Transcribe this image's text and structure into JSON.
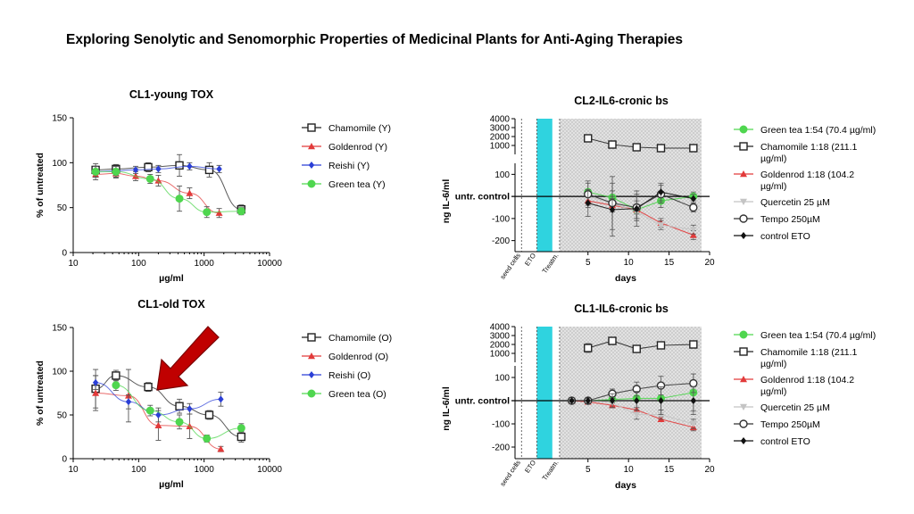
{
  "slide_title": "Exploring Senolytic and Senomorphic Properties of Medicinal Plants for Anti-Aging Therapies",
  "colors": {
    "chamomile": "#222222",
    "goldenrod": "#e23a3a",
    "reishi": "#2b3fd6",
    "green_tea": "#4fd64f",
    "quercetin": "#c4c4c4",
    "tempo": "#333333",
    "control": "#111111",
    "eto_band": "#2fd3df",
    "shade": "#d6d6d6"
  },
  "chart_data": [
    {
      "type": "line",
      "title": "CL1-young TOX",
      "xlabel": "µg/ml",
      "ylabel": "% of untreated",
      "xscale": "log",
      "xlim": [
        10,
        10000
      ],
      "ylim": [
        0,
        150
      ],
      "xticks": [
        "10",
        "100",
        "1000",
        "10000"
      ],
      "yticks": [
        "0",
        "50",
        "100",
        "150"
      ],
      "series": [
        {
          "name": "Chamomile (Y)",
          "key": "chamomile",
          "marker": "square-open",
          "x": [
            22,
            45,
            140,
            420,
            1200,
            3700
          ],
          "y": [
            92,
            93,
            95,
            97,
            92,
            48
          ],
          "err": [
            7,
            5,
            5,
            12,
            8,
            5
          ]
        },
        {
          "name": "Goldenrod (Y)",
          "key": "goldenrod",
          "marker": "triangle",
          "x": [
            22,
            45,
            90,
            200,
            600,
            1700
          ],
          "y": [
            87,
            88,
            85,
            80,
            66,
            44
          ],
          "err": [
            6,
            5,
            5,
            6,
            6,
            5
          ]
        },
        {
          "name": "Reishi (Y)",
          "key": "reishi",
          "marker": "diamond",
          "x": [
            22,
            45,
            90,
            200,
            600,
            1700
          ],
          "y": [
            90,
            91,
            92,
            93,
            96,
            93
          ],
          "err": [
            6,
            5,
            4,
            4,
            4,
            4
          ]
        },
        {
          "name": "Green tea (Y)",
          "key": "green_tea",
          "marker": "circle",
          "x": [
            22,
            45,
            150,
            420,
            1100,
            3700
          ],
          "y": [
            90,
            90,
            82,
            60,
            45,
            46
          ],
          "err": [
            6,
            6,
            5,
            14,
            6,
            4
          ]
        }
      ]
    },
    {
      "type": "line",
      "title": "CL1-old TOX",
      "xlabel": "µg/ml",
      "ylabel": "% of untreated",
      "xscale": "log",
      "xlim": [
        10,
        10000
      ],
      "ylim": [
        0,
        150
      ],
      "xticks": [
        "10",
        "100",
        "1000",
        "10000"
      ],
      "yticks": [
        "0",
        "50",
        "100",
        "150"
      ],
      "series": [
        {
          "name": "Chamomile (O)",
          "key": "chamomile",
          "marker": "square-open",
          "x": [
            22,
            45,
            140,
            420,
            1200,
            3700
          ],
          "y": [
            80,
            95,
            82,
            60,
            50,
            25
          ],
          "err": [
            22,
            6,
            5,
            8,
            5,
            6
          ]
        },
        {
          "name": "Goldenrod (O)",
          "key": "goldenrod",
          "marker": "triangle",
          "x": [
            22,
            70,
            200,
            600,
            1800
          ],
          "y": [
            75,
            72,
            38,
            37,
            11
          ],
          "err": [
            20,
            30,
            17,
            14,
            3
          ]
        },
        {
          "name": "Reishi (O)",
          "key": "reishi",
          "marker": "diamond",
          "x": [
            22,
            70,
            200,
            600,
            1800
          ],
          "y": [
            87,
            65,
            50,
            57,
            68
          ],
          "err": [
            8,
            8,
            8,
            6,
            8
          ]
        },
        {
          "name": "Green tea (O)",
          "key": "green_tea",
          "marker": "circle",
          "x": [
            45,
            150,
            420,
            1100,
            3700
          ],
          "y": [
            84,
            55,
            42,
            23,
            35
          ],
          "err": [
            6,
            6,
            8,
            4,
            5
          ]
        }
      ]
    },
    {
      "type": "line",
      "title": "CL2-IL6-cronic bs",
      "xlabel": "days",
      "ylabel": "ng IL-6/ml",
      "xlim": [
        -4,
        20
      ],
      "xticks": [
        "5",
        "10",
        "15",
        "20"
      ],
      "yticks_top": [
        "1000",
        "2000",
        "3000",
        "4000"
      ],
      "yticks_bottom": [
        "-200",
        "-100",
        "100"
      ],
      "zero_label": "untr. control",
      "vlabels": [
        "seed cells",
        "ETO",
        "Treatm."
      ],
      "series": [
        {
          "name": "Green tea 1:54 (70.4 µg/ml)",
          "key": "green_tea",
          "marker": "circle",
          "x": [
            5,
            8,
            11,
            14,
            18
          ],
          "y": [
            20,
            -5,
            -60,
            -20,
            0
          ],
          "err": [
            40,
            30,
            40,
            30,
            20
          ]
        },
        {
          "name": "Chamomile 1:18 (211.1 µg/ml)",
          "key": "chamomile",
          "marker": "square-open",
          "x": [
            5,
            8,
            11,
            14,
            18
          ],
          "y": [
            1800,
            1100,
            800,
            700,
            700
          ],
          "err": [
            150,
            400,
            200,
            100,
            100
          ]
        },
        {
          "name": "Goldenrod 1:18 (104.2 µg/ml)",
          "key": "goldenrod",
          "marker": "triangle",
          "x": [
            5,
            8,
            11,
            14,
            18
          ],
          "y": [
            -20,
            -40,
            -60,
            -120,
            -175
          ],
          "err": [
            20,
            30,
            20,
            20,
            20
          ]
        },
        {
          "name": "Quercetin 25 µM",
          "key": "quercetin",
          "marker": "triangle-down",
          "x": [
            5,
            8,
            11,
            14,
            18
          ],
          "y": [
            0,
            -30,
            -70,
            -130,
            -150
          ],
          "err": [
            30,
            30,
            30,
            20,
            20
          ]
        },
        {
          "name": "Tempo 250µM",
          "key": "tempo",
          "marker": "circle-open",
          "x": [
            5,
            8,
            11,
            14,
            18
          ],
          "y": [
            10,
            -30,
            -50,
            10,
            -50
          ],
          "err": [
            60,
            120,
            60,
            40,
            20
          ]
        },
        {
          "name": "control ETO",
          "key": "control",
          "marker": "diamond",
          "x": [
            5,
            8,
            11,
            14,
            18
          ],
          "y": [
            -30,
            -60,
            -55,
            20,
            -10
          ],
          "err": [
            60,
            120,
            80,
            40,
            20
          ]
        }
      ]
    },
    {
      "type": "line",
      "title": "CL1-IL6-cronic bs",
      "xlabel": "days",
      "ylabel": "ng IL-6/ml",
      "xlim": [
        -4,
        20
      ],
      "xticks": [
        "5",
        "10",
        "15",
        "20"
      ],
      "yticks_top": [
        "1000",
        "2000",
        "3000",
        "4000"
      ],
      "yticks_bottom": [
        "-200",
        "-100",
        "100"
      ],
      "zero_label": "untr. control",
      "vlabels": [
        "seed cells",
        "ETO",
        "Treatm."
      ],
      "series": [
        {
          "name": "Green tea 1:54 (70.4 µg/ml)",
          "key": "green_tea",
          "marker": "circle",
          "x": [
            3,
            5,
            8,
            11,
            14,
            18
          ],
          "y": [
            0,
            0,
            5,
            10,
            10,
            35
          ],
          "err": [
            5,
            10,
            30,
            40,
            50,
            80
          ]
        },
        {
          "name": "Chamomile 1:18 (211.1 µg/ml)",
          "key": "chamomile",
          "marker": "square-open",
          "x": [
            5,
            8,
            11,
            14,
            18
          ],
          "y": [
            1600,
            2400,
            1500,
            1900,
            2000
          ],
          "err": [
            500,
            300,
            400,
            400,
            400
          ]
        },
        {
          "name": "Goldenrod 1:18 (104.2 µg/ml)",
          "key": "goldenrod",
          "marker": "triangle",
          "x": [
            3,
            5,
            8,
            11,
            14,
            18
          ],
          "y": [
            0,
            -5,
            -20,
            -40,
            -80,
            -115
          ],
          "err": [
            5,
            10,
            10,
            10,
            10,
            15
          ]
        },
        {
          "name": "Quercetin 25 µM",
          "key": "quercetin",
          "marker": "triangle-down",
          "x": [
            3,
            5,
            8,
            11,
            14,
            18
          ],
          "y": [
            0,
            5,
            -10,
            -60,
            -60,
            -100
          ],
          "err": [
            5,
            10,
            20,
            20,
            20,
            20
          ]
        },
        {
          "name": "Tempo 250µM",
          "key": "tempo",
          "marker": "circle-open",
          "x": [
            3,
            5,
            8,
            11,
            14,
            18
          ],
          "y": [
            0,
            0,
            30,
            50,
            65,
            75
          ],
          "err": [
            5,
            10,
            20,
            30,
            40,
            40
          ]
        },
        {
          "name": "control ETO",
          "key": "control",
          "marker": "diamond",
          "x": [
            3,
            5,
            8,
            11,
            14,
            18
          ],
          "y": [
            0,
            0,
            0,
            0,
            0,
            0
          ],
          "err": [
            5,
            10,
            30,
            40,
            60,
            60
          ]
        }
      ]
    }
  ]
}
